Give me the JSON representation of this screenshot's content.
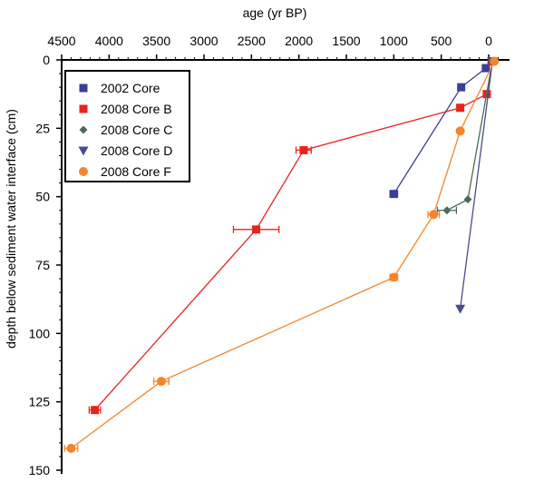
{
  "chart_data": {
    "type": "scatter",
    "title": "",
    "xlabel": "age (yr BP)",
    "ylabel": "depth below sediment water interface (cm)",
    "xlim": [
      4500,
      -100
    ],
    "ylim": [
      0,
      150
    ],
    "x_axis_position": "top",
    "y_inverted": true,
    "xticks": [
      4500,
      4000,
      3500,
      3000,
      2500,
      2000,
      1500,
      1000,
      500,
      0
    ],
    "yticks": [
      0,
      25,
      50,
      75,
      100,
      125,
      150
    ],
    "grid": false,
    "legend": "top-left",
    "series": [
      {
        "name": "2002 Core",
        "color": "#3a3f9a",
        "marker": "square",
        "points": [
          {
            "x": -30,
            "y": 0.5
          },
          {
            "x": 30,
            "y": 3
          },
          {
            "x": 290,
            "y": 10
          },
          {
            "x": 1000,
            "y": 49,
            "xerr": 40
          }
        ]
      },
      {
        "name": "2008 Core B",
        "color": "#e8231e",
        "marker": "square",
        "points": [
          {
            "x": -40,
            "y": 0.5
          },
          {
            "x": 20,
            "y": 12.5
          },
          {
            "x": 300,
            "y": 17.5
          },
          {
            "x": 1950,
            "y": 33,
            "xerr": 80
          },
          {
            "x": 2450,
            "y": 62,
            "xerr": 240
          },
          {
            "x": 4150,
            "y": 128,
            "xerr": 60
          }
        ]
      },
      {
        "name": "2008 Core C",
        "color": "#4a6a5a",
        "marker": "diamond",
        "points": [
          {
            "x": -40,
            "y": 0.5
          },
          {
            "x": 220,
            "y": 51
          },
          {
            "x": 440,
            "y": 55,
            "xerr": 100
          }
        ]
      },
      {
        "name": "2008 Core D",
        "color": "#4a4a90",
        "marker": "triangle-down",
        "points": [
          {
            "x": -40,
            "y": 0.5
          },
          {
            "x": 300,
            "y": 91
          }
        ]
      },
      {
        "name": "2008 Core F",
        "color": "#f3852a",
        "marker": "circle",
        "points": [
          {
            "x": -60,
            "y": 0.5
          },
          {
            "x": 300,
            "y": 26
          },
          {
            "x": 580,
            "y": 56.5,
            "xerr": 60
          },
          {
            "x": 1000,
            "y": 79.5,
            "xerr": 40
          },
          {
            "x": 3450,
            "y": 117.5,
            "xerr": 80
          },
          {
            "x": 4400,
            "y": 142,
            "xerr": 70
          }
        ]
      }
    ]
  }
}
